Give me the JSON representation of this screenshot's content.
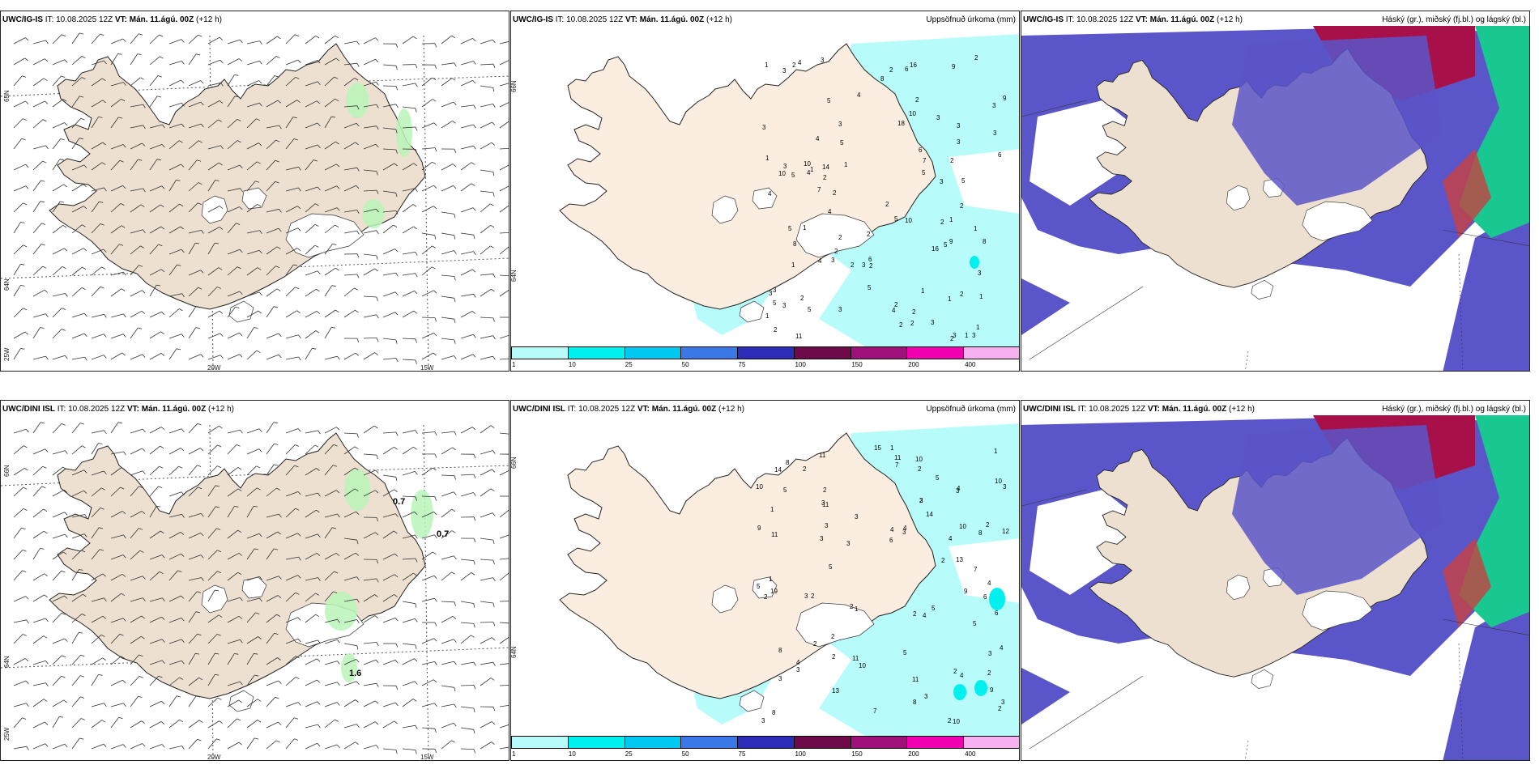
{
  "rows": [
    {
      "model": "UWC/IG-IS",
      "init_label": "IT:",
      "init_time": "10.08.2025 12Z",
      "valid_label": "VT:",
      "valid_time": "Mán. 11.ágú. 00Z",
      "lead": "(+12 h)",
      "wind_labels": [],
      "precip_numbers": [
        "2",
        "4",
        "2",
        "1",
        "3",
        "5",
        "3",
        "4",
        "3",
        "3",
        "5",
        "2",
        "1",
        "3",
        "2",
        "1",
        "2",
        "6",
        "3",
        "1",
        "1",
        "1",
        "2",
        "4",
        "2",
        "5",
        "4",
        "3",
        "3",
        "3",
        "2",
        "2",
        "3",
        "3",
        "3",
        "1",
        "3",
        "4",
        "1",
        "3",
        "4",
        "1",
        "1",
        "3",
        "2",
        "5",
        "6",
        "4",
        "3",
        "2",
        "2",
        "2",
        "10",
        "9",
        "3",
        "6",
        "5",
        "3",
        "1",
        "2",
        "6",
        "4",
        "3",
        "2",
        "1",
        "10",
        "2",
        "18",
        "16",
        "2",
        "5",
        "10",
        "5",
        "3",
        "1",
        "2",
        "8",
        "5",
        "9",
        "2",
        "2",
        "2",
        "5",
        "10",
        "8",
        "11",
        "8",
        "5",
        "5",
        "14",
        "16",
        "2",
        "7",
        "7",
        "3",
        "9",
        "1",
        "2"
      ]
    },
    {
      "model": "UWC/DINI ISL",
      "init_label": "IT:",
      "init_time": "10.08.2025 12Z",
      "valid_label": "VT:",
      "valid_time": "Mán. 11.ágú. 00Z",
      "lead": "(+12 h)",
      "wind_labels": [
        "0.7",
        "0.7",
        "1.6"
      ],
      "precip_numbers": [
        "4",
        "3",
        "4",
        "6",
        "3",
        "4",
        "5",
        "4",
        "5",
        "2",
        "2",
        "3",
        "5",
        "2",
        "4",
        "2",
        "3",
        "4",
        "5",
        "3",
        "2",
        "1",
        "2",
        "2",
        "3",
        "2",
        "1",
        "1",
        "3",
        "3",
        "5",
        "2",
        "3",
        "3",
        "2",
        "3",
        "2",
        "3",
        "1",
        "4",
        "5",
        "2",
        "7",
        "9",
        "3",
        "7",
        "2",
        "13",
        "11",
        "6",
        "5",
        "3",
        "9",
        "10",
        "11",
        "19",
        "4",
        "8",
        "11",
        "14",
        "9",
        "10",
        "11",
        "7",
        "11",
        "8",
        "8",
        "11",
        "10",
        "6",
        "8",
        "10",
        "15",
        "8",
        "14",
        "12",
        "3",
        "1",
        "4",
        "2",
        "2",
        "13",
        "10",
        "10",
        "2",
        "3",
        "2"
      ]
    }
  ],
  "precip_title": "Uppsöfnuð úrkoma (mm)",
  "cloud_title": "Háský (gr.), miðský (fj.bl.) og lágský (bl.)",
  "colorbar": {
    "colors": [
      "#b8fbfb",
      "#00f0f0",
      "#00c8f0",
      "#3a78e8",
      "#2c2cb8",
      "#6e0a4a",
      "#a0107a",
      "#f000b0",
      "#f7b0f0"
    ],
    "ticks": [
      "1",
      "10",
      "25",
      "50",
      "75",
      "100",
      "150",
      "200",
      "400"
    ]
  },
  "axes": {
    "lat_65": "65N",
    "lat_64": "64N",
    "lat_66": "66N",
    "lat_64b": "64N",
    "lon_20": "20W",
    "lon_15": "15W",
    "lon_25": "25W"
  },
  "colors": {
    "land": "#ede0d0",
    "precip_light": "#b8fbfb",
    "cloud_mid": "#5a55c8",
    "cloud_high_pink": "#a8104a",
    "cloud_low_green": "#18c890",
    "wind_green": "#b8f4b8"
  }
}
